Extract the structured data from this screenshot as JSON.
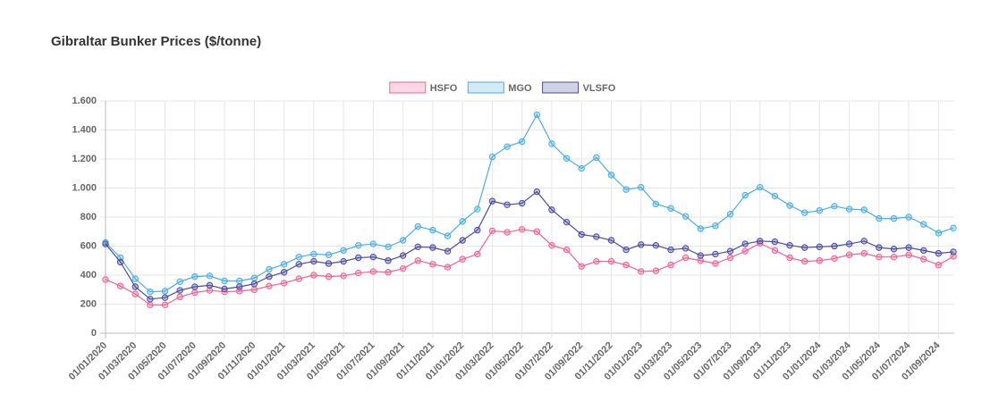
{
  "chart_data": {
    "type": "line",
    "title": "Gibraltar Bunker Prices ($/tonne)",
    "categories": [
      "01/01/2020",
      null,
      "01/03/2020",
      null,
      "01/05/2020",
      null,
      "01/07/2020",
      null,
      "01/09/2020",
      null,
      "01/11/2020",
      null,
      "01/01/2021",
      null,
      "01/03/2021",
      null,
      "01/05/2021",
      null,
      "01/07/2021",
      null,
      "01/09/2021",
      null,
      "01/11/2021",
      null,
      "01/01/2022",
      null,
      "01/03/2022",
      null,
      "01/05/2022",
      null,
      "01/07/2022",
      null,
      "01/09/2022",
      null,
      "01/11/2022",
      null,
      "01/01/2023",
      null,
      "01/03/2023",
      null,
      "01/05/2023",
      null,
      "01/07/2023",
      null,
      "01/09/2023",
      null,
      "01/11/2023",
      null,
      "01/01/2024",
      null,
      "01/03/2024",
      null,
      "01/05/2024",
      null,
      "01/07/2024",
      null,
      "01/09/2024",
      null
    ],
    "series": [
      {
        "name": "HSFO",
        "color": "#f06292",
        "values": [
          370,
          325,
          270,
          195,
          195,
          250,
          280,
          295,
          285,
          290,
          300,
          325,
          345,
          375,
          400,
          390,
          395,
          415,
          425,
          420,
          445,
          500,
          475,
          455,
          510,
          545,
          705,
          695,
          715,
          700,
          605,
          575,
          460,
          495,
          495,
          470,
          425,
          430,
          470,
          520,
          500,
          480,
          520,
          565,
          620,
          570,
          520,
          495,
          500,
          515,
          540,
          550,
          525,
          525,
          540,
          510,
          470,
          530
        ]
      },
      {
        "name": "MGO",
        "color": "#4aaee0",
        "values": [
          625,
          520,
          375,
          285,
          290,
          355,
          390,
          395,
          360,
          360,
          380,
          440,
          475,
          525,
          545,
          540,
          570,
          605,
          615,
          595,
          640,
          735,
          710,
          670,
          770,
          855,
          1215,
          1285,
          1320,
          1505,
          1305,
          1205,
          1135,
          1210,
          1090,
          990,
          1005,
          890,
          860,
          805,
          720,
          740,
          820,
          950,
          1005,
          945,
          880,
          830,
          845,
          875,
          855,
          850,
          790,
          790,
          800,
          750,
          690,
          725
        ]
      },
      {
        "name": "VLSFO",
        "color": "#4a4aa0",
        "values": [
          615,
          490,
          320,
          235,
          245,
          295,
          320,
          330,
          305,
          320,
          340,
          390,
          420,
          475,
          495,
          480,
          495,
          520,
          525,
          500,
          535,
          595,
          590,
          565,
          640,
          710,
          910,
          885,
          895,
          975,
          850,
          765,
          680,
          665,
          640,
          575,
          610,
          605,
          575,
          585,
          535,
          545,
          565,
          615,
          635,
          630,
          605,
          590,
          595,
          600,
          615,
          635,
          590,
          580,
          590,
          570,
          550,
          560
        ]
      }
    ],
    "ylim": [
      0,
      1600
    ],
    "yticks": [
      0,
      200,
      400,
      600,
      800,
      {
        "value": 1000,
        "label": "1.000"
      },
      {
        "value": 1200,
        "label": "1.200"
      },
      {
        "value": 1400,
        "label": "1.400"
      },
      {
        "value": 1600,
        "label": "1.600"
      }
    ],
    "grid": true,
    "legend": "top"
  }
}
